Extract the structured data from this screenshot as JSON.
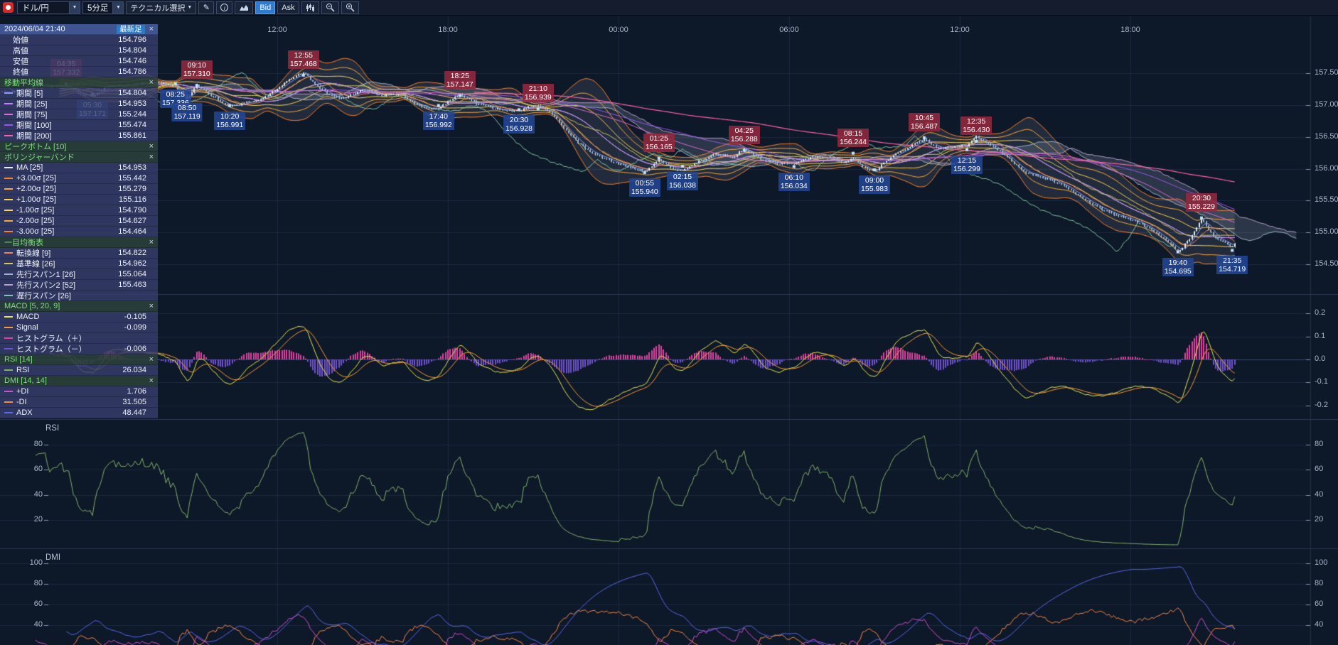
{
  "toolbar": {
    "pair": "ドル/円",
    "timeframe": "5分足",
    "technical": "テクニカル選択",
    "bid": "Bid",
    "ask": "Ask"
  },
  "icons": {
    "chevron_down": "▼",
    "pencil": "✎",
    "info": "i",
    "close": "×"
  },
  "panels": {
    "rsi_title": "RSI",
    "dmi_title": "DMI"
  },
  "info_panel": {
    "timestamp": "2024/06/04 21:40",
    "badge": "最新足",
    "ohlc": [
      {
        "label": "始値",
        "value": "154.796"
      },
      {
        "label": "高値",
        "value": "154.804"
      },
      {
        "label": "安値",
        "value": "154.746"
      },
      {
        "label": "終値",
        "value": "154.786"
      }
    ],
    "groups": [
      {
        "title": "移動平均線",
        "rows": [
          {
            "label": "期間 [5]",
            "value": "154.804",
            "color": "#8c9bff"
          },
          {
            "label": "期間 [25]",
            "value": "154.953",
            "color": "#c77dff"
          },
          {
            "label": "期間 [75]",
            "value": "155.244",
            "color": "#e06ad0"
          },
          {
            "label": "期間 [100]",
            "value": "155.474",
            "color": "#9955ee"
          },
          {
            "label": "期間 [200]",
            "value": "155.861",
            "color": "#ff5fa8"
          }
        ]
      },
      {
        "title": "ピークボトム [10]",
        "rows": []
      },
      {
        "title": "ボリンジャーバンド",
        "rows": [
          {
            "label": "MA [25]",
            "value": "154.953",
            "color": "#e8eef8"
          },
          {
            "label": "+3.00σ [25]",
            "value": "155.442",
            "color": "#ff7f27"
          },
          {
            "label": "+2.00σ [25]",
            "value": "155.279",
            "color": "#ffa733"
          },
          {
            "label": "+1.00σ [25]",
            "value": "155.116",
            "color": "#ffd24d"
          },
          {
            "label": "-1.00σ [25]",
            "value": "154.790",
            "color": "#ffd24d"
          },
          {
            "label": "-2.00σ [25]",
            "value": "154.627",
            "color": "#ffa733"
          },
          {
            "label": "-3.00σ [25]",
            "value": "154.464",
            "color": "#ff7f27"
          }
        ]
      },
      {
        "title": "一目均衡表",
        "rows": [
          {
            "label": "転換線 [9]",
            "value": "154.822",
            "color": "#f08060"
          },
          {
            "label": "基準線 [26]",
            "value": "154.962",
            "color": "#d4c85a"
          },
          {
            "label": "先行スパン1 [26]",
            "value": "155.064",
            "color": "#9fb6c8"
          },
          {
            "label": "先行スパン2 [52]",
            "value": "155.463",
            "color": "#b89fc8"
          },
          {
            "label": "遅行スパン [26]",
            "value": "",
            "color": "#80c8a0"
          }
        ]
      },
      {
        "title": "MACD [5, 20, 9]",
        "rows": [
          {
            "label": "MACD",
            "value": "-0.105",
            "color": "#e8e84a"
          },
          {
            "label": "Signal",
            "value": "-0.099",
            "color": "#ff9933"
          },
          {
            "label": "ヒストグラム（＋）",
            "value": "",
            "color": "#e040a0"
          },
          {
            "label": "ヒストグラム（－）",
            "value": "-0.006",
            "color": "#7050d0"
          }
        ]
      },
      {
        "title": "RSI [14]",
        "rows": [
          {
            "label": "RSI",
            "value": "26.034",
            "color": "#82b366"
          }
        ]
      },
      {
        "title": "DMI [14, 14]",
        "rows": [
          {
            "label": "+DI",
            "value": "1.706",
            "color": "#d050d0"
          },
          {
            "label": "-DI",
            "value": "31.505",
            "color": "#ff8840"
          },
          {
            "label": "ADX",
            "value": "48.447",
            "color": "#5868f0"
          }
        ]
      }
    ]
  },
  "chart_data": {
    "type": "candlestick",
    "symbol": "ドル/円",
    "interval": "5分足",
    "x_axis_labels": [
      {
        "t": 12,
        "label": "12:00"
      },
      {
        "t": 18,
        "label": "18:00"
      },
      {
        "t": 24,
        "label": "00:00"
      },
      {
        "t": 30,
        "label": "06:00"
      },
      {
        "t": 36,
        "label": "12:00"
      },
      {
        "t": 42,
        "label": "18:00"
      }
    ],
    "price_ticks": [
      {
        "v": 157.5,
        "label": "157.50"
      },
      {
        "v": 157.0,
        "label": "157.00"
      },
      {
        "v": 156.5,
        "label": "156.50"
      },
      {
        "v": 156.0,
        "label": "156.00"
      },
      {
        "v": 155.5,
        "label": "155.50"
      },
      {
        "v": 155.0,
        "label": "155.00"
      },
      {
        "v": 154.5,
        "label": "154.50"
      }
    ],
    "macd_ticks": [
      {
        "v": 0.2,
        "label": "0.2"
      },
      {
        "v": 0.1,
        "label": "0.1"
      },
      {
        "v": 0,
        "label": "0.0"
      },
      {
        "v": -0.1,
        "label": "-0.1"
      },
      {
        "v": -0.2,
        "label": "-0.2"
      }
    ],
    "rsi_ticks": [
      {
        "v": 80,
        "label": "80"
      },
      {
        "v": 60,
        "label": "60"
      },
      {
        "v": 40,
        "label": "40"
      },
      {
        "v": 20,
        "label": "20"
      }
    ],
    "dmi_ticks": [
      {
        "v": 100,
        "label": "100"
      },
      {
        "v": 80,
        "label": "80"
      },
      {
        "v": 60,
        "label": "60"
      },
      {
        "v": 40,
        "label": "40"
      }
    ],
    "price_path": [
      [
        2.4,
        157.28
      ],
      [
        3.0,
        157.24
      ],
      [
        3.6,
        157.31
      ],
      [
        4.1,
        157.27
      ],
      [
        4.58,
        157.332
      ],
      [
        5.0,
        157.23
      ],
      [
        5.5,
        157.171
      ],
      [
        6.1,
        157.27
      ],
      [
        6.7,
        157.23
      ],
      [
        7.3,
        157.3
      ],
      [
        7.9,
        157.36
      ],
      [
        8.42,
        157.336
      ],
      [
        8.63,
        157.2
      ],
      [
        8.83,
        157.119
      ],
      [
        9.17,
        157.31
      ],
      [
        9.6,
        157.15
      ],
      [
        10.0,
        157.05
      ],
      [
        10.33,
        156.991
      ],
      [
        10.9,
        157.1
      ],
      [
        11.5,
        157.17
      ],
      [
        12.1,
        157.28
      ],
      [
        12.5,
        157.38
      ],
      [
        12.92,
        157.468
      ],
      [
        13.3,
        157.3
      ],
      [
        13.8,
        157.17
      ],
      [
        14.3,
        157.12
      ],
      [
        15.0,
        157.21
      ],
      [
        15.7,
        157.09
      ],
      [
        16.4,
        157.16
      ],
      [
        17.0,
        157.04
      ],
      [
        17.67,
        156.992
      ],
      [
        18.0,
        157.08
      ],
      [
        18.42,
        157.147
      ],
      [
        19.0,
        157.01
      ],
      [
        19.7,
        156.97
      ],
      [
        20.1,
        156.95
      ],
      [
        20.5,
        156.928
      ],
      [
        20.85,
        156.97
      ],
      [
        21.17,
        156.939
      ],
      [
        21.6,
        156.82
      ],
      [
        22.1,
        156.56
      ],
      [
        22.6,
        156.4
      ],
      [
        23.1,
        156.27
      ],
      [
        23.6,
        156.18
      ],
      [
        24.1,
        156.06
      ],
      [
        24.6,
        155.98
      ],
      [
        24.92,
        155.94
      ],
      [
        25.42,
        156.165
      ],
      [
        25.9,
        156.07
      ],
      [
        26.25,
        156.038
      ],
      [
        26.8,
        156.13
      ],
      [
        27.4,
        156.19
      ],
      [
        28.0,
        156.12
      ],
      [
        28.42,
        156.288
      ],
      [
        29.0,
        156.17
      ],
      [
        29.6,
        156.09
      ],
      [
        30.17,
        156.034
      ],
      [
        30.8,
        156.13
      ],
      [
        31.4,
        156.19
      ],
      [
        31.9,
        156.15
      ],
      [
        32.25,
        156.244
      ],
      [
        32.6,
        156.08
      ],
      [
        33.0,
        155.983
      ],
      [
        33.6,
        156.16
      ],
      [
        34.2,
        156.33
      ],
      [
        34.75,
        156.487
      ],
      [
        35.2,
        156.36
      ],
      [
        35.8,
        156.33
      ],
      [
        36.25,
        156.299
      ],
      [
        36.58,
        156.43
      ],
      [
        37.1,
        156.31
      ],
      [
        37.7,
        156.18
      ],
      [
        38.3,
        155.99
      ],
      [
        38.9,
        155.88
      ],
      [
        39.5,
        155.74
      ],
      [
        40.1,
        155.61
      ],
      [
        40.7,
        155.48
      ],
      [
        41.3,
        155.37
      ],
      [
        41.9,
        155.22
      ],
      [
        42.5,
        155.04
      ],
      [
        43.1,
        154.88
      ],
      [
        43.67,
        154.695
      ],
      [
        44.1,
        154.92
      ],
      [
        44.5,
        155.229
      ],
      [
        44.9,
        154.93
      ],
      [
        45.25,
        154.82
      ],
      [
        45.58,
        154.719
      ],
      [
        45.67,
        154.786
      ]
    ],
    "annotations": [
      {
        "t": 4.58,
        "time": "04:35",
        "price": "157.332",
        "kind": "peak"
      },
      {
        "t": 9.17,
        "time": "09:10",
        "price": "157.310",
        "kind": "peak"
      },
      {
        "t": 12.92,
        "time": "12:55",
        "price": "157.468",
        "kind": "peak"
      },
      {
        "t": 18.42,
        "time": "18:25",
        "price": "157.147",
        "kind": "peak"
      },
      {
        "t": 21.17,
        "time": "21:10",
        "price": "156.939",
        "kind": "peak"
      },
      {
        "t": 25.42,
        "time": "01:25",
        "price": "156.165",
        "kind": "peak"
      },
      {
        "t": 28.42,
        "time": "04:25",
        "price": "156.288",
        "kind": "peak"
      },
      {
        "t": 32.25,
        "time": "08:15",
        "price": "156.244",
        "kind": "peak"
      },
      {
        "t": 34.75,
        "time": "10:45",
        "price": "156.487",
        "kind": "peak"
      },
      {
        "t": 36.58,
        "time": "12:35",
        "price": "156.430",
        "kind": "peak"
      },
      {
        "t": 44.5,
        "time": "20:30",
        "price": "155.229",
        "kind": "peak"
      },
      {
        "t": 5.5,
        "time": "05:30",
        "price": "157.171",
        "kind": "bottom"
      },
      {
        "t": 8.42,
        "time": "08:25",
        "price": "157.336",
        "kind": "bottom"
      },
      {
        "t": 8.83,
        "time": "08:50",
        "price": "157.119",
        "kind": "bottom"
      },
      {
        "t": 10.33,
        "time": "10:20",
        "price": "156.991",
        "kind": "bottom"
      },
      {
        "t": 17.67,
        "time": "17:40",
        "price": "156.992",
        "kind": "bottom"
      },
      {
        "t": 20.5,
        "time": "20:30",
        "price": "156.928",
        "kind": "bottom"
      },
      {
        "t": 24.92,
        "time": "00:55",
        "price": "155.940",
        "kind": "bottom"
      },
      {
        "t": 26.25,
        "time": "02:15",
        "price": "156.038",
        "kind": "bottom"
      },
      {
        "t": 30.17,
        "time": "06:10",
        "price": "156.034",
        "kind": "bottom"
      },
      {
        "t": 33.0,
        "time": "09:00",
        "price": "155.983",
        "kind": "bottom"
      },
      {
        "t": 36.25,
        "time": "12:15",
        "price": "156.299",
        "kind": "bottom"
      },
      {
        "t": 43.67,
        "time": "19:40",
        "price": "154.695",
        "kind": "bottom"
      },
      {
        "t": 45.58,
        "time": "21:35",
        "price": "154.719",
        "kind": "bottom"
      }
    ],
    "colors": {
      "ma5": "#8c9bff",
      "ma25": "#c77dff",
      "ma75": "#e06ad0",
      "ma100": "#9955ee",
      "ma200": "#ff5fa8",
      "bb_ma": "#e8eef8",
      "bb1": "#ffd24d",
      "bb2": "#ffa733",
      "bb3": "#ff7f27",
      "tenkan": "#f08060",
      "kijun": "#d4c85a",
      "spanA": "#9fb6c8",
      "spanB": "#b89fc8",
      "chikou": "#80c8a0",
      "macd": "#e8e84a",
      "signal": "#ff9933",
      "hist_pos": "#e040a0",
      "hist_neg": "#7050d0",
      "rsi": "#82b366",
      "plus_di": "#d050d0",
      "minus_di": "#ff8840",
      "adx": "#5868f0",
      "candle_up": "#d6ecf8",
      "candle_down": "#8fb4d8",
      "bb_fill": "rgba(170,180,200,0.13)",
      "cloud_fill": "rgba(150,165,190,0.22)"
    }
  }
}
